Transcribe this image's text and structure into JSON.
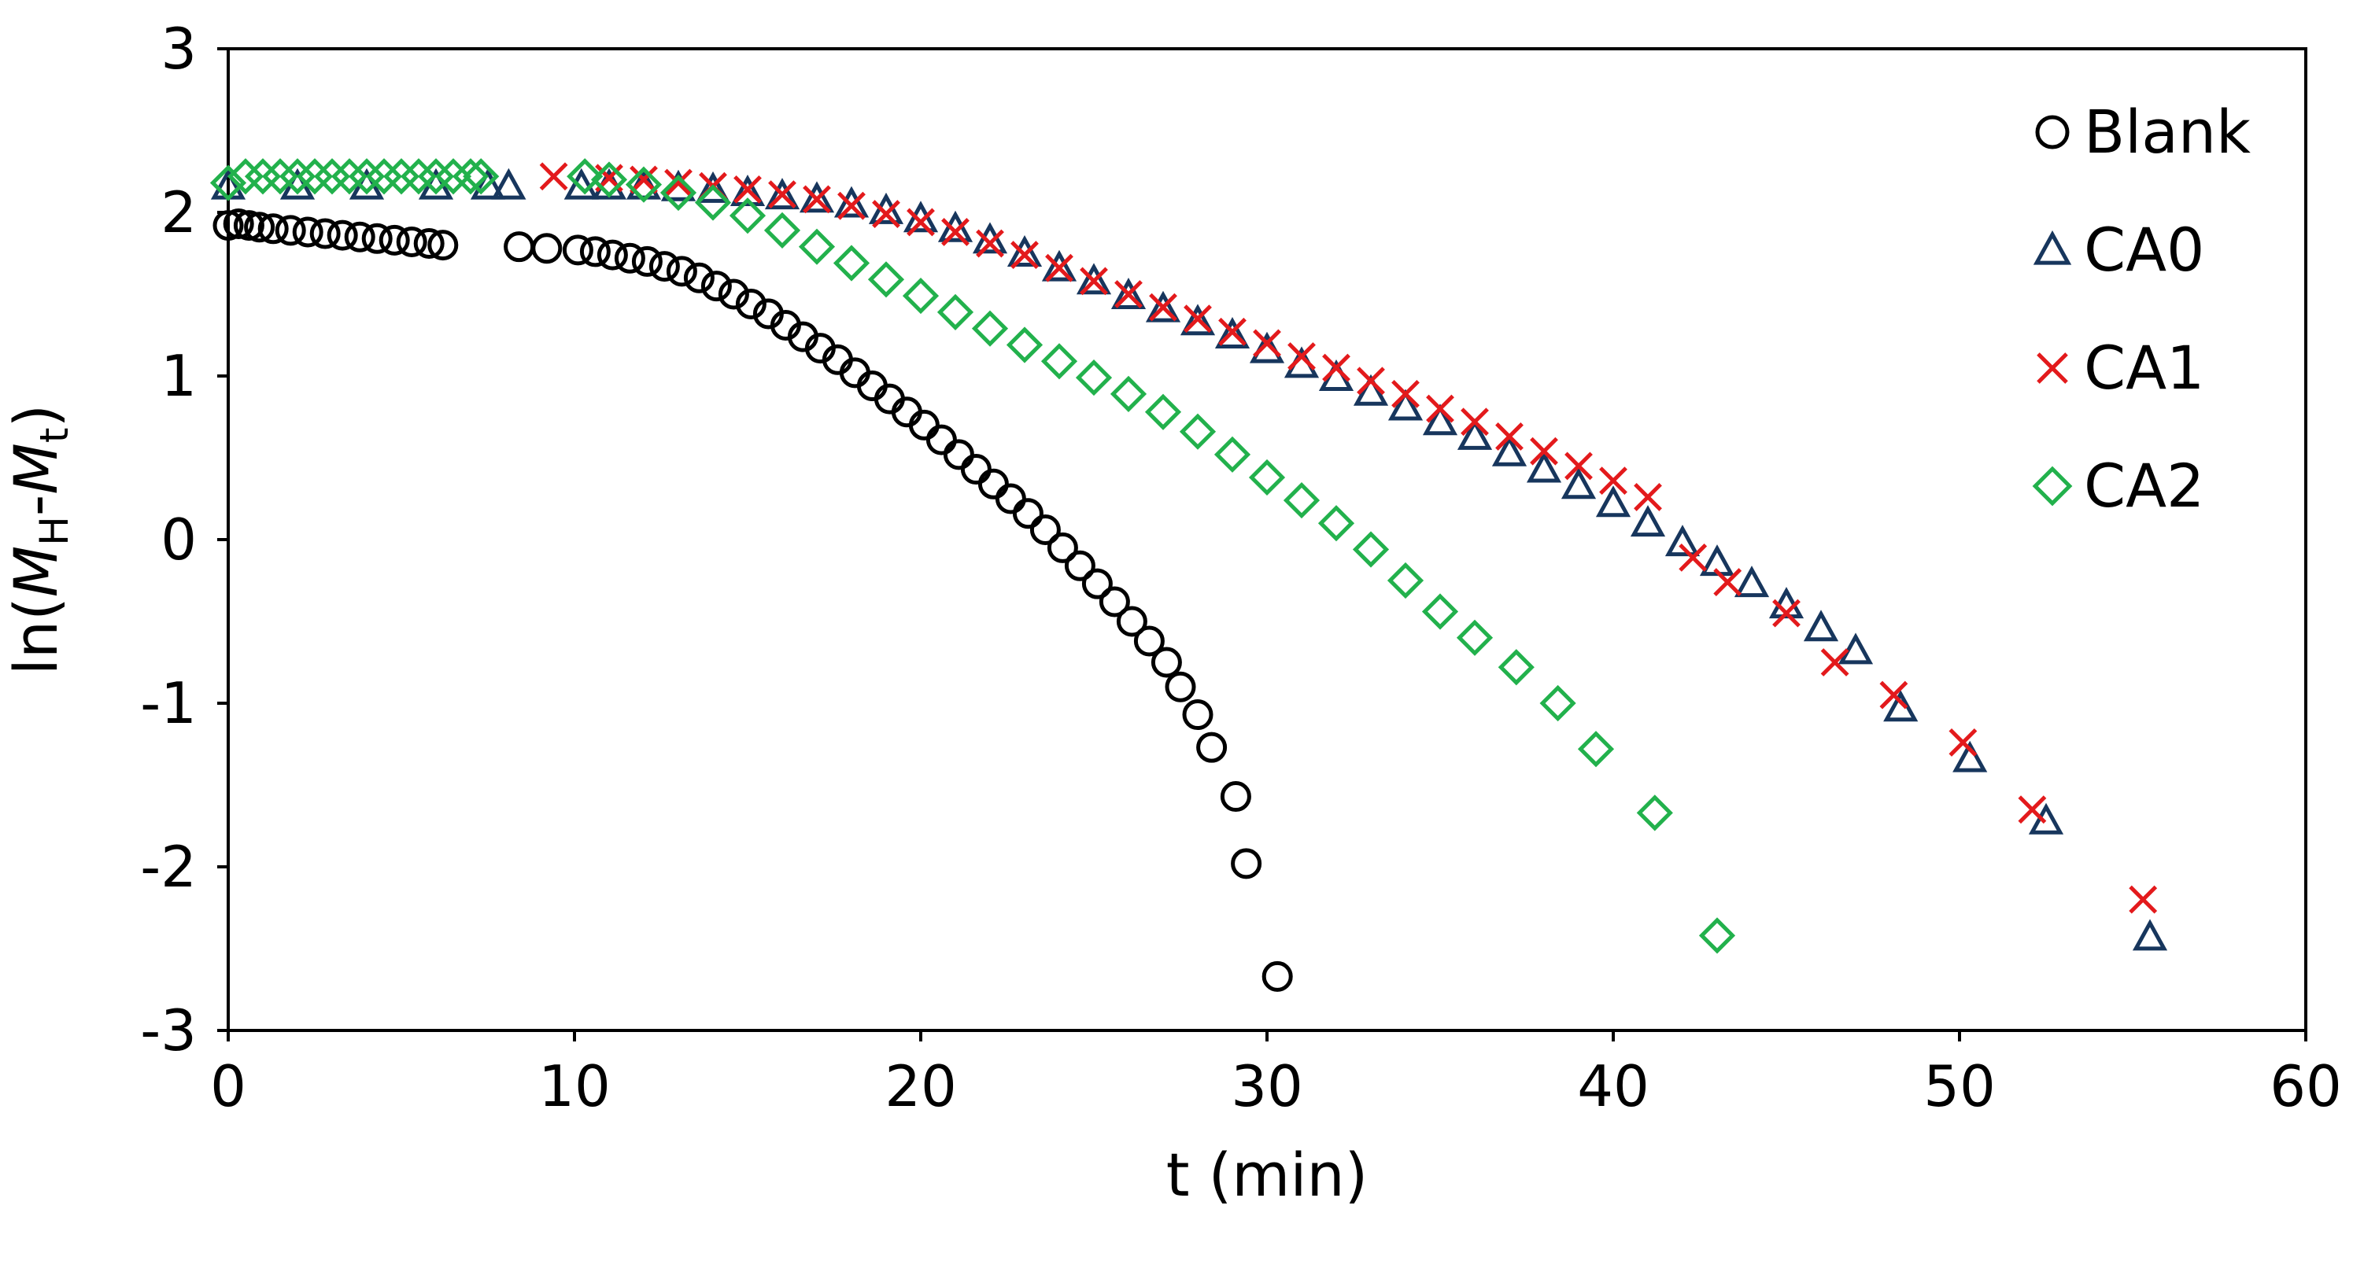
{
  "chart_data": {
    "type": "scatter",
    "title": "",
    "xlabel": "t (min)",
    "ylabel": {
      "prefix": "ln(",
      "m1": "M",
      "sub1": "H",
      "dash": "-",
      "m2": "M",
      "sub2": "t",
      "suffix": ")"
    },
    "xlim": [
      0,
      60
    ],
    "ylim": [
      -3,
      3
    ],
    "xticks": [
      "0",
      "10",
      "20",
      "30",
      "40",
      "50",
      "60"
    ],
    "yticks": [
      "3",
      "2",
      "1",
      "0",
      "-1",
      "-2",
      "-3"
    ],
    "grid": false,
    "legend_position": "top-right",
    "series": [
      {
        "name": "Blank",
        "marker": "circle",
        "color": "#000000",
        "x": [
          0,
          0.3,
          0.6,
          0.9,
          1.3,
          1.8,
          2.3,
          2.8,
          3.3,
          3.8,
          4.3,
          4.8,
          5.3,
          5.8,
          6.2,
          8.4,
          9.2,
          10.1,
          10.6,
          11.1,
          11.6,
          12.1,
          12.6,
          13.1,
          13.6,
          14.1,
          14.6,
          15.1,
          15.6,
          16.1,
          16.6,
          17.1,
          17.6,
          18.1,
          18.6,
          19.1,
          19.6,
          20.1,
          20.6,
          21.1,
          21.6,
          22.1,
          22.6,
          23.1,
          23.6,
          24.1,
          24.6,
          25.1,
          25.6,
          26.1,
          26.6,
          27.1,
          27.5,
          28.0,
          28.4,
          29.1,
          29.4,
          30.3
        ],
        "y": [
          1.92,
          1.93,
          1.92,
          1.91,
          1.9,
          1.89,
          1.88,
          1.87,
          1.86,
          1.85,
          1.84,
          1.83,
          1.82,
          1.81,
          1.8,
          1.79,
          1.78,
          1.77,
          1.76,
          1.74,
          1.72,
          1.7,
          1.67,
          1.64,
          1.6,
          1.55,
          1.5,
          1.44,
          1.38,
          1.31,
          1.24,
          1.17,
          1.1,
          1.02,
          0.94,
          0.86,
          0.78,
          0.7,
          0.61,
          0.52,
          0.43,
          0.34,
          0.25,
          0.16,
          0.06,
          -0.05,
          -0.16,
          -0.27,
          -0.38,
          -0.5,
          -0.62,
          -0.75,
          -0.9,
          -1.07,
          -1.27,
          -1.57,
          -1.98,
          -2.67
        ]
      },
      {
        "name": "CA0",
        "marker": "triangle",
        "color": "#17365d",
        "x": [
          0,
          2,
          4,
          6,
          7.5,
          8.1,
          10.2,
          11,
          12,
          13,
          14,
          15,
          16,
          17,
          18,
          19,
          20,
          21,
          22,
          23,
          24,
          25,
          26,
          27,
          28,
          29,
          30,
          31,
          32,
          33,
          34,
          35,
          36,
          37,
          38,
          39,
          40,
          41,
          42,
          43,
          44,
          45,
          46,
          47,
          48.3,
          50.3,
          52.5,
          55.5
        ],
        "y": [
          2.16,
          2.16,
          2.16,
          2.16,
          2.16,
          2.16,
          2.16,
          2.16,
          2.16,
          2.15,
          2.14,
          2.12,
          2.1,
          2.08,
          2.05,
          2.01,
          1.96,
          1.9,
          1.83,
          1.75,
          1.66,
          1.58,
          1.49,
          1.41,
          1.33,
          1.25,
          1.16,
          1.07,
          0.99,
          0.9,
          0.81,
          0.72,
          0.63,
          0.53,
          0.43,
          0.33,
          0.22,
          0.1,
          -0.02,
          -0.14,
          -0.27,
          -0.4,
          -0.54,
          -0.68,
          -1.03,
          -1.34,
          -1.72,
          -2.43
        ]
      },
      {
        "name": "CA1",
        "marker": "x",
        "color": "#e31a1c",
        "x": [
          9.4,
          11,
          12,
          13,
          14,
          15,
          16,
          17,
          18,
          19,
          20,
          21,
          22,
          23,
          24,
          25,
          26,
          27,
          28,
          29,
          30,
          31,
          32,
          33,
          34,
          35,
          36,
          37,
          38,
          39,
          40,
          41,
          42.3,
          43.3,
          45,
          46.4,
          48.1,
          50.1,
          52.1,
          55.3
        ],
        "y": [
          2.22,
          2.21,
          2.2,
          2.18,
          2.16,
          2.14,
          2.11,
          2.08,
          2.04,
          1.99,
          1.94,
          1.88,
          1.81,
          1.74,
          1.66,
          1.58,
          1.5,
          1.42,
          1.35,
          1.27,
          1.2,
          1.12,
          1.05,
          0.97,
          0.89,
          0.8,
          0.72,
          0.63,
          0.54,
          0.45,
          0.36,
          0.26,
          -0.11,
          -0.26,
          -0.45,
          -0.75,
          -0.95,
          -1.24,
          -1.65,
          -2.2
        ]
      },
      {
        "name": "CA2",
        "marker": "diamond",
        "color": "#22b14c",
        "x": [
          0,
          0.5,
          1,
          1.5,
          2,
          2.5,
          3,
          3.5,
          4,
          4.5,
          5,
          5.5,
          6,
          6.5,
          7,
          7.3,
          10.3,
          11,
          12,
          13,
          14,
          15,
          16,
          17,
          18,
          19,
          20,
          21,
          22,
          23,
          24,
          25,
          26,
          27,
          28,
          29,
          30,
          31,
          32,
          33,
          34,
          35,
          36,
          37.2,
          38.4,
          39.5,
          41.2,
          43.0
        ],
        "y": [
          2.18,
          2.22,
          2.22,
          2.22,
          2.22,
          2.22,
          2.22,
          2.22,
          2.22,
          2.22,
          2.22,
          2.22,
          2.22,
          2.22,
          2.22,
          2.22,
          2.22,
          2.2,
          2.17,
          2.12,
          2.06,
          1.98,
          1.89,
          1.79,
          1.69,
          1.59,
          1.49,
          1.39,
          1.29,
          1.19,
          1.09,
          0.99,
          0.89,
          0.78,
          0.66,
          0.52,
          0.38,
          0.24,
          0.1,
          -0.06,
          -0.25,
          -0.44,
          -0.6,
          -0.78,
          -1.0,
          -1.28,
          -1.67,
          -2.42
        ]
      }
    ]
  }
}
